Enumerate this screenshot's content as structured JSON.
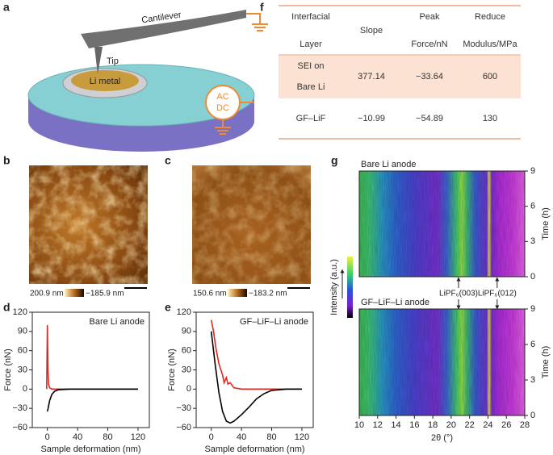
{
  "panels": [
    "a",
    "b",
    "c",
    "d",
    "e",
    "f",
    "g"
  ],
  "diagram": {
    "cantilever": "Cantilever",
    "tip": "Tip",
    "sample": "Li metal",
    "source": [
      "AC",
      "DC"
    ]
  },
  "afm": [
    {
      "max": "200.9 nm",
      "min": "−185.9 nm"
    },
    {
      "max": "150.6 nm",
      "min": "−183.2 nm"
    }
  ],
  "table": {
    "header": [
      [
        "Interfacial",
        "Layer"
      ],
      [
        "Slope"
      ],
      [
        "Peak",
        "Force/nN"
      ],
      [
        "Reduce",
        "Modulus/MPa"
      ]
    ],
    "rows": [
      [
        [
          "SEI on",
          "Bare Li"
        ],
        [
          "377.14"
        ],
        [
          "−33.64"
        ],
        [
          "600"
        ]
      ],
      [
        [
          "GF–LiF"
        ],
        [
          "−10.99"
        ],
        [
          "−54.89"
        ],
        [
          "130"
        ]
      ]
    ]
  },
  "colorbar_label": "Intensity (a.u.)",
  "chart_data": [
    {
      "type": "line",
      "title": "Bare Li anode",
      "xlabel": "Sample deformation (nm)",
      "ylabel": "Force (nN)",
      "xlim": [
        -20,
        135
      ],
      "xticks": [
        0,
        40,
        80,
        120
      ],
      "ylim": [
        -60,
        120
      ],
      "yticks": [
        {
          "value": -60,
          "label": "−60"
        },
        {
          "value": -30,
          "label": "−30"
        },
        0,
        30,
        60,
        90,
        120
      ],
      "series": [
        {
          "color": "#e3261f",
          "x": [
            -1,
            0,
            0.3,
            0.8,
            1.5,
            3,
            6,
            20,
            60,
            100,
            120
          ],
          "values": [
            0,
            100,
            70,
            30,
            8,
            2,
            0,
            0,
            0,
            0,
            0
          ]
        },
        {
          "color": "#000000",
          "x": [
            0,
            1,
            3,
            6,
            10,
            15,
            30,
            60,
            100,
            120
          ],
          "values": [
            -35,
            -30,
            -18,
            -8,
            -3,
            -1,
            0,
            0,
            0,
            0
          ]
        }
      ]
    },
    {
      "type": "line",
      "title": "GF–LiF–Li anode",
      "xlabel": "Sample deformation (nm)",
      "ylabel": "Force (nN)",
      "xlim": [
        -20,
        135
      ],
      "xticks": [
        0,
        40,
        80,
        120
      ],
      "ylim": [
        -60,
        120
      ],
      "yticks": [
        {
          "value": -60,
          "label": "−60"
        },
        {
          "value": -30,
          "label": "−30"
        },
        0,
        30,
        60,
        90,
        120
      ],
      "series": [
        {
          "color": "#e3261f",
          "x": [
            0,
            3,
            6,
            10,
            15,
            17,
            20,
            22,
            25,
            30,
            40,
            80,
            120
          ],
          "values": [
            108,
            90,
            65,
            40,
            22,
            10,
            18,
            8,
            10,
            2,
            0,
            0,
            0
          ]
        },
        {
          "color": "#000000",
          "x": [
            0,
            5,
            10,
            15,
            20,
            25,
            30,
            40,
            50,
            60,
            70,
            80,
            100,
            120
          ],
          "values": [
            90,
            40,
            -5,
            -35,
            -50,
            -53,
            -50,
            -40,
            -28,
            -15,
            -7,
            -2,
            0,
            0
          ]
        }
      ]
    },
    {
      "type": "heatmap",
      "title": "Bare Li anode",
      "ylabel": "Time (h)",
      "xlim": [
        10,
        28
      ],
      "ylim": [
        0,
        9
      ],
      "yticks": [
        0,
        3,
        6,
        9
      ],
      "annotations": [
        {
          "text": "LiPF₆(003)",
          "x": 20.8
        },
        {
          "text": "LiPF₆(012)",
          "x": 25.0
        }
      ]
    },
    {
      "type": "heatmap",
      "title": "GF–LiF–Li anode",
      "xlabel": "2θ (°)",
      "ylabel": "Time (h)",
      "xlim": [
        10,
        28
      ],
      "xticks": [
        10,
        12,
        14,
        16,
        18,
        20,
        22,
        24,
        26,
        28
      ],
      "ylim": [
        0,
        9
      ],
      "yticks": [
        0,
        3,
        6,
        9
      ]
    }
  ]
}
